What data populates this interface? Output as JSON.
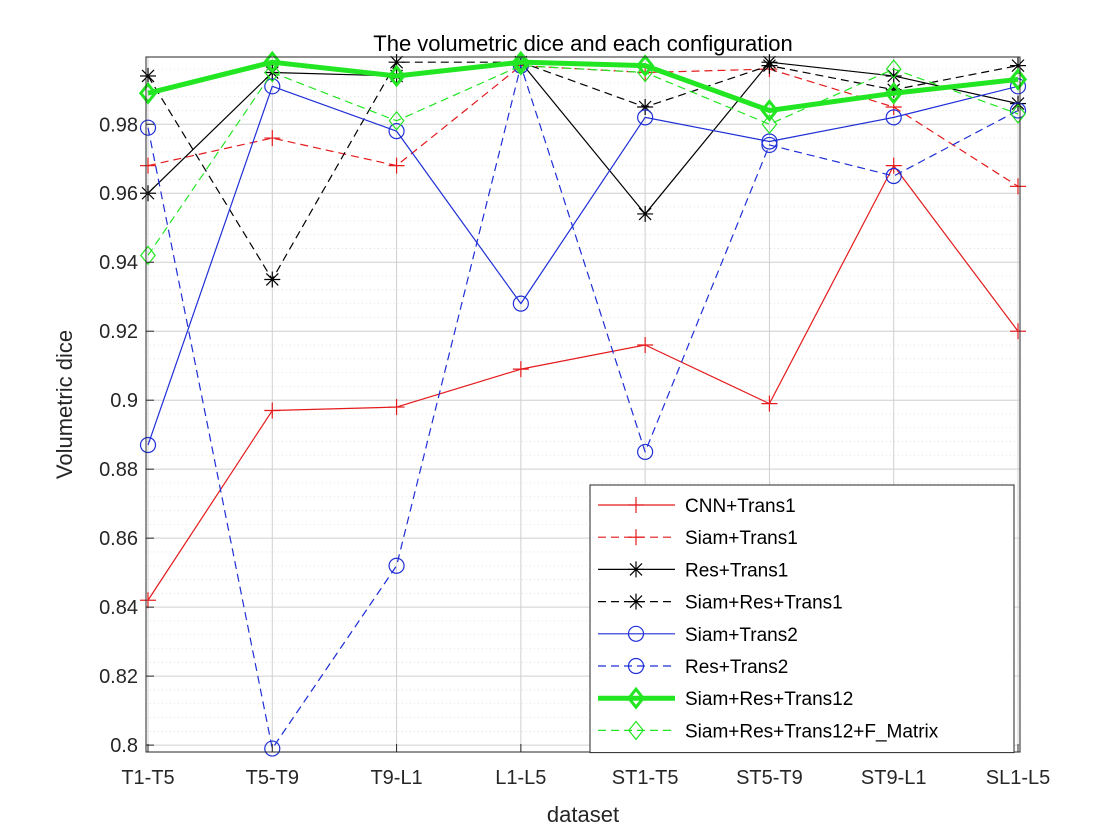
{
  "chart_data": {
    "type": "line",
    "title": "The volumetric dice and each configuration",
    "xlabel": "dataset",
    "ylabel": "Volumetric dice",
    "categories": [
      "T1-T5",
      "T5-T9",
      "T9-L1",
      "L1-L5",
      "ST1-T5",
      "ST5-T9",
      "ST9-L1",
      "SL1-L5"
    ],
    "ylim": [
      0.798,
      0.9995
    ],
    "yticks": [
      0.8,
      0.82,
      0.84,
      0.86,
      0.88,
      0.9,
      0.92,
      0.94,
      0.96,
      0.98
    ],
    "ytick_labels": [
      "0.8",
      "0.82",
      "0.84",
      "0.86",
      "0.88",
      "0.9",
      "0.92",
      "0.94",
      "0.96",
      "0.98"
    ],
    "grid": true,
    "minor_grid": true,
    "legend_position": "bottom-right",
    "series": [
      {
        "name": "CNN+Trans1",
        "color": "#e41a1c",
        "dash": "solid",
        "marker": "plus",
        "width": 1.2,
        "values": [
          0.842,
          0.897,
          0.898,
          0.909,
          0.916,
          0.899,
          0.968,
          0.92
        ]
      },
      {
        "name": "Siam+Trans1",
        "color": "#e41a1c",
        "dash": "dashed",
        "marker": "plus",
        "width": 1.2,
        "values": [
          0.968,
          0.976,
          0.968,
          0.997,
          0.995,
          0.996,
          0.985,
          0.962
        ]
      },
      {
        "name": "Res+Trans1",
        "color": "#000000",
        "dash": "solid",
        "marker": "star",
        "width": 1.2,
        "values": [
          0.96,
          0.995,
          0.994,
          0.998,
          0.954,
          0.998,
          0.994,
          0.986
        ]
      },
      {
        "name": "Siam+Res+Trans1",
        "color": "#000000",
        "dash": "dashed",
        "marker": "star",
        "width": 1.2,
        "values": [
          0.994,
          0.935,
          0.998,
          0.998,
          0.985,
          0.997,
          0.99,
          0.997
        ]
      },
      {
        "name": "Siam+Trans2",
        "color": "#1f2fd6",
        "dash": "solid",
        "marker": "circle",
        "width": 1.2,
        "values": [
          0.887,
          0.991,
          0.978,
          0.928,
          0.982,
          0.975,
          0.982,
          0.991
        ]
      },
      {
        "name": "Res+Trans2",
        "color": "#1f2fd6",
        "dash": "dashed",
        "marker": "circle",
        "width": 1.2,
        "values": [
          0.979,
          0.799,
          0.852,
          0.997,
          0.885,
          0.974,
          0.965,
          0.984
        ]
      },
      {
        "name": "Siam+Res+Trans12",
        "color": "#22e622",
        "dash": "solid",
        "marker": "diamond",
        "width": 5,
        "values": [
          0.989,
          0.998,
          0.994,
          0.998,
          0.997,
          0.984,
          0.989,
          0.993
        ]
      },
      {
        "name": "Siam+Res+Trans12+F_Matrix",
        "color": "#22e622",
        "dash": "dashed",
        "marker": "diamond",
        "width": 1.2,
        "values": [
          0.942,
          0.995,
          0.981,
          0.997,
          0.995,
          0.98,
          0.996,
          0.983
        ]
      }
    ]
  }
}
